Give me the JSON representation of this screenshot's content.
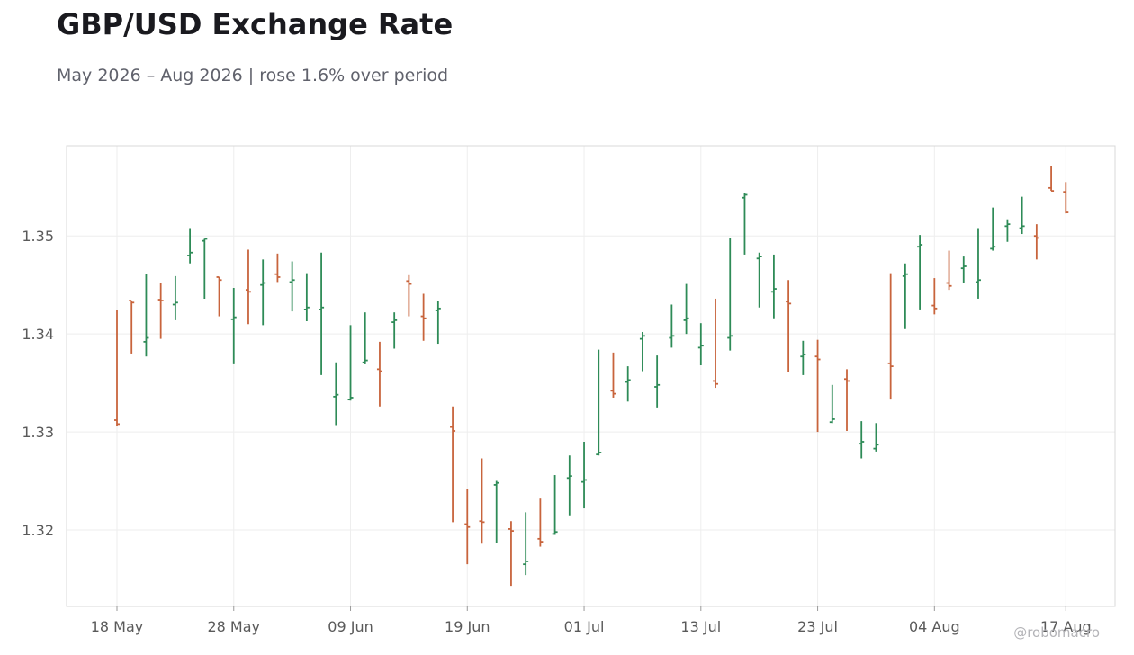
{
  "title": "GBP/USD Exchange Rate",
  "subtitle": "May 2026 – Aug 2026 | rose 1.6% over period",
  "watermark": "@robomacro",
  "colors": {
    "up": "#2e8b57",
    "down": "#c8643c",
    "grid": "#eeeeee",
    "axis": "#d8d8d8",
    "tick_text": "#5a5a5a"
  },
  "chart_data": {
    "type": "ohlc",
    "title": "GBP/USD Exchange Rate",
    "subtitle": "May 2026 – Aug 2026 | rose 1.6% over period",
    "xlabel": "",
    "ylabel": "",
    "x_ticks": [
      "18 May",
      "28 May",
      "09 Jun",
      "19 Jun",
      "01 Jul",
      "13 Jul",
      "23 Jul",
      "04 Aug",
      "17 Aug"
    ],
    "y_ticks": [
      1.32,
      1.33,
      1.34,
      1.35
    ],
    "ylim": [
      1.3122,
      1.3592
    ],
    "grid": true,
    "bars": [
      {
        "date": "18 May",
        "open": 1.3312,
        "high": 1.3424,
        "low": 1.3306,
        "close": 1.3308
      },
      {
        "date": "19 May",
        "open": 1.3434,
        "high": 1.3434,
        "low": 1.338,
        "close": 1.3432
      },
      {
        "date": "20 May",
        "open": 1.3392,
        "high": 1.3461,
        "low": 1.3377,
        "close": 1.3396
      },
      {
        "date": "21 May",
        "open": 1.3435,
        "high": 1.3452,
        "low": 1.3395,
        "close": 1.3434
      },
      {
        "date": "22 May",
        "open": 1.343,
        "high": 1.3459,
        "low": 1.3414,
        "close": 1.3432
      },
      {
        "date": "25 May",
        "open": 1.348,
        "high": 1.3508,
        "low": 1.3472,
        "close": 1.3483
      },
      {
        "date": "26 May",
        "open": 1.3495,
        "high": 1.3497,
        "low": 1.3436,
        "close": 1.3497
      },
      {
        "date": "27 May",
        "open": 1.3458,
        "high": 1.3458,
        "low": 1.3418,
        "close": 1.3455
      },
      {
        "date": "28 May",
        "open": 1.3415,
        "high": 1.3447,
        "low": 1.3369,
        "close": 1.3417
      },
      {
        "date": "29 May",
        "open": 1.3445,
        "high": 1.3486,
        "low": 1.341,
        "close": 1.3443
      },
      {
        "date": "01 Jun",
        "open": 1.345,
        "high": 1.3476,
        "low": 1.3409,
        "close": 1.3452
      },
      {
        "date": "02 Jun",
        "open": 1.3461,
        "high": 1.3482,
        "low": 1.3453,
        "close": 1.3458
      },
      {
        "date": "03 Jun",
        "open": 1.3453,
        "high": 1.3474,
        "low": 1.3423,
        "close": 1.3455
      },
      {
        "date": "04 Jun",
        "open": 1.3425,
        "high": 1.3462,
        "low": 1.3413,
        "close": 1.3427
      },
      {
        "date": "05 Jun",
        "open": 1.3425,
        "high": 1.3483,
        "low": 1.3358,
        "close": 1.3427
      },
      {
        "date": "08 Jun",
        "open": 1.3336,
        "high": 1.3371,
        "low": 1.3307,
        "close": 1.3338
      },
      {
        "date": "09 Jun",
        "open": 1.3333,
        "high": 1.3409,
        "low": 1.3332,
        "close": 1.3335
      },
      {
        "date": "10 Jun",
        "open": 1.3371,
        "high": 1.3422,
        "low": 1.3369,
        "close": 1.3373
      },
      {
        "date": "11 Jun",
        "open": 1.3364,
        "high": 1.3392,
        "low": 1.3326,
        "close": 1.3362
      },
      {
        "date": "12 Jun",
        "open": 1.3412,
        "high": 1.3422,
        "low": 1.3385,
        "close": 1.3414
      },
      {
        "date": "15 Jun",
        "open": 1.3454,
        "high": 1.346,
        "low": 1.3418,
        "close": 1.3451
      },
      {
        "date": "16 Jun",
        "open": 1.3418,
        "high": 1.3441,
        "low": 1.3393,
        "close": 1.3416
      },
      {
        "date": "17 Jun",
        "open": 1.3424,
        "high": 1.3434,
        "low": 1.339,
        "close": 1.3426
      },
      {
        "date": "18 Jun",
        "open": 1.3305,
        "high": 1.3326,
        "low": 1.3208,
        "close": 1.3301
      },
      {
        "date": "19 Jun",
        "open": 1.3206,
        "high": 1.3242,
        "low": 1.3165,
        "close": 1.3203
      },
      {
        "date": "22 Jun",
        "open": 1.3209,
        "high": 1.3273,
        "low": 1.3186,
        "close": 1.3208
      },
      {
        "date": "23 Jun",
        "open": 1.3246,
        "high": 1.325,
        "low": 1.3187,
        "close": 1.3248
      },
      {
        "date": "24 Jun",
        "open": 1.3201,
        "high": 1.3209,
        "low": 1.3143,
        "close": 1.3199
      },
      {
        "date": "25 Jun",
        "open": 1.3165,
        "high": 1.3218,
        "low": 1.3154,
        "close": 1.3168
      },
      {
        "date": "26 Jun",
        "open": 1.3191,
        "high": 1.3232,
        "low": 1.3183,
        "close": 1.3188
      },
      {
        "date": "29 Jun",
        "open": 1.3196,
        "high": 1.3256,
        "low": 1.3195,
        "close": 1.3198
      },
      {
        "date": "30 Jun",
        "open": 1.3253,
        "high": 1.3276,
        "low": 1.3215,
        "close": 1.3255
      },
      {
        "date": "01 Jul",
        "open": 1.3249,
        "high": 1.329,
        "low": 1.3222,
        "close": 1.3251
      },
      {
        "date": "02 Jul",
        "open": 1.3277,
        "high": 1.3384,
        "low": 1.3276,
        "close": 1.3279
      },
      {
        "date": "03 Jul",
        "open": 1.3342,
        "high": 1.3381,
        "low": 1.3335,
        "close": 1.3339
      },
      {
        "date": "06 Jul",
        "open": 1.3351,
        "high": 1.3367,
        "low": 1.3331,
        "close": 1.3353
      },
      {
        "date": "07 Jul",
        "open": 1.3395,
        "high": 1.3402,
        "low": 1.3362,
        "close": 1.3398
      },
      {
        "date": "08 Jul",
        "open": 1.3346,
        "high": 1.3378,
        "low": 1.3325,
        "close": 1.3348
      },
      {
        "date": "09 Jul",
        "open": 1.3396,
        "high": 1.343,
        "low": 1.3386,
        "close": 1.3398
      },
      {
        "date": "10 Jul",
        "open": 1.3414,
        "high": 1.3451,
        "low": 1.34,
        "close": 1.3416
      },
      {
        "date": "13 Jul",
        "open": 1.3386,
        "high": 1.3411,
        "low": 1.3368,
        "close": 1.3388
      },
      {
        "date": "14 Jul",
        "open": 1.3352,
        "high": 1.3436,
        "low": 1.3345,
        "close": 1.3349
      },
      {
        "date": "15 Jul",
        "open": 1.3396,
        "high": 1.3498,
        "low": 1.3383,
        "close": 1.3398
      },
      {
        "date": "16 Jul",
        "open": 1.3539,
        "high": 1.3544,
        "low": 1.3481,
        "close": 1.3542
      },
      {
        "date": "17 Jul",
        "open": 1.3477,
        "high": 1.3483,
        "low": 1.3427,
        "close": 1.3479
      },
      {
        "date": "20 Jul",
        "open": 1.3443,
        "high": 1.3481,
        "low": 1.3416,
        "close": 1.3446
      },
      {
        "date": "21 Jul",
        "open": 1.3433,
        "high": 1.3455,
        "low": 1.3361,
        "close": 1.3431
      },
      {
        "date": "22 Jul",
        "open": 1.3377,
        "high": 1.3393,
        "low": 1.3358,
        "close": 1.3379
      },
      {
        "date": "23 Jul",
        "open": 1.3377,
        "high": 1.3394,
        "low": 1.33,
        "close": 1.3374
      },
      {
        "date": "24 Jul",
        "open": 1.331,
        "high": 1.3348,
        "low": 1.3309,
        "close": 1.3313
      },
      {
        "date": "27 Jul",
        "open": 1.3354,
        "high": 1.3364,
        "low": 1.3301,
        "close": 1.3352
      },
      {
        "date": "28 Jul",
        "open": 1.3288,
        "high": 1.3311,
        "low": 1.3273,
        "close": 1.329
      },
      {
        "date": "29 Jul",
        "open": 1.3283,
        "high": 1.3309,
        "low": 1.328,
        "close": 1.3287
      },
      {
        "date": "30 Jul",
        "open": 1.337,
        "high": 1.3462,
        "low": 1.3333,
        "close": 1.3367
      },
      {
        "date": "31 Jul",
        "open": 1.3459,
        "high": 1.3472,
        "low": 1.3405,
        "close": 1.3461
      },
      {
        "date": "03 Aug",
        "open": 1.3489,
        "high": 1.3501,
        "low": 1.3425,
        "close": 1.3491
      },
      {
        "date": "04 Aug",
        "open": 1.3429,
        "high": 1.3457,
        "low": 1.342,
        "close": 1.3426
      },
      {
        "date": "05 Aug",
        "open": 1.3452,
        "high": 1.3485,
        "low": 1.3445,
        "close": 1.3449
      },
      {
        "date": "06 Aug",
        "open": 1.3467,
        "high": 1.3479,
        "low": 1.3452,
        "close": 1.3469
      },
      {
        "date": "07 Aug",
        "open": 1.3453,
        "high": 1.3508,
        "low": 1.3436,
        "close": 1.3455
      },
      {
        "date": "10 Aug",
        "open": 1.3487,
        "high": 1.3529,
        "low": 1.3485,
        "close": 1.3489
      },
      {
        "date": "11 Aug",
        "open": 1.351,
        "high": 1.3517,
        "low": 1.3494,
        "close": 1.3512
      },
      {
        "date": "12 Aug",
        "open": 1.3508,
        "high": 1.354,
        "low": 1.3502,
        "close": 1.351
      },
      {
        "date": "13 Aug",
        "open": 1.35,
        "high": 1.3512,
        "low": 1.3476,
        "close": 1.3498
      },
      {
        "date": "14 Aug",
        "open": 1.3549,
        "high": 1.3571,
        "low": 1.3546,
        "close": 1.3546
      },
      {
        "date": "17 Aug",
        "open": 1.3545,
        "high": 1.3555,
        "low": 1.3523,
        "close": 1.3524
      }
    ]
  }
}
